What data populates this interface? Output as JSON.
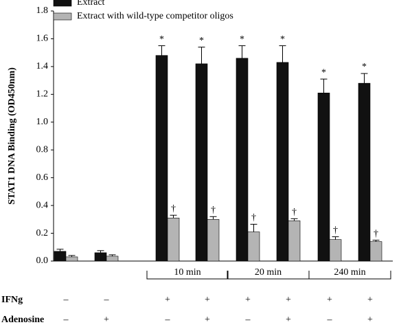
{
  "chart_data": {
    "type": "bar",
    "y_label": "STAT1 DNA Binding (OD450nm)",
    "categories": [
      null,
      null,
      null,
      null,
      null,
      null,
      null,
      null
    ],
    "series": [
      {
        "name": "Extract",
        "color": "#111111",
        "values": [
          0.07,
          0.06,
          1.48,
          1.42,
          1.46,
          1.43,
          1.21,
          1.28
        ],
        "errors": [
          0.015,
          0.015,
          0.07,
          0.12,
          0.09,
          0.12,
          0.1,
          0.07
        ],
        "markers": [
          null,
          null,
          "*",
          "*",
          "*",
          "*",
          "*",
          "*"
        ]
      },
      {
        "name": "Extract with wild-type competitor oligos",
        "color": "#b4b4b4",
        "values": [
          0.03,
          0.035,
          0.31,
          0.3,
          0.21,
          0.29,
          0.155,
          0.14
        ],
        "errors": [
          0.01,
          0.01,
          0.02,
          0.02,
          0.055,
          0.015,
          0.02,
          0.01
        ],
        "markers": [
          null,
          null,
          "†",
          "†",
          "†",
          "†",
          "†",
          "†"
        ]
      }
    ],
    "group_labels": [
      null,
      "10 min",
      "20 min",
      "240 min"
    ],
    "conditions": [
      {
        "label": "IFNg",
        "values": [
          "–",
          "–",
          "+",
          "+",
          "+",
          "+",
          "+",
          "+"
        ]
      },
      {
        "label": "Adenosine",
        "values": [
          "–",
          "+",
          "–",
          "+",
          "–",
          "+",
          "–",
          "+"
        ]
      }
    ],
    "ylim": [
      0,
      1.8
    ],
    "yticks": [
      {
        "value": 0,
        "label": "0.0"
      },
      0.2,
      0.4,
      0.6,
      0.8,
      {
        "value": 1,
        "label": "1.0"
      },
      1.2,
      1.4,
      1.6,
      1.8
    ],
    "legend": "top-left"
  }
}
